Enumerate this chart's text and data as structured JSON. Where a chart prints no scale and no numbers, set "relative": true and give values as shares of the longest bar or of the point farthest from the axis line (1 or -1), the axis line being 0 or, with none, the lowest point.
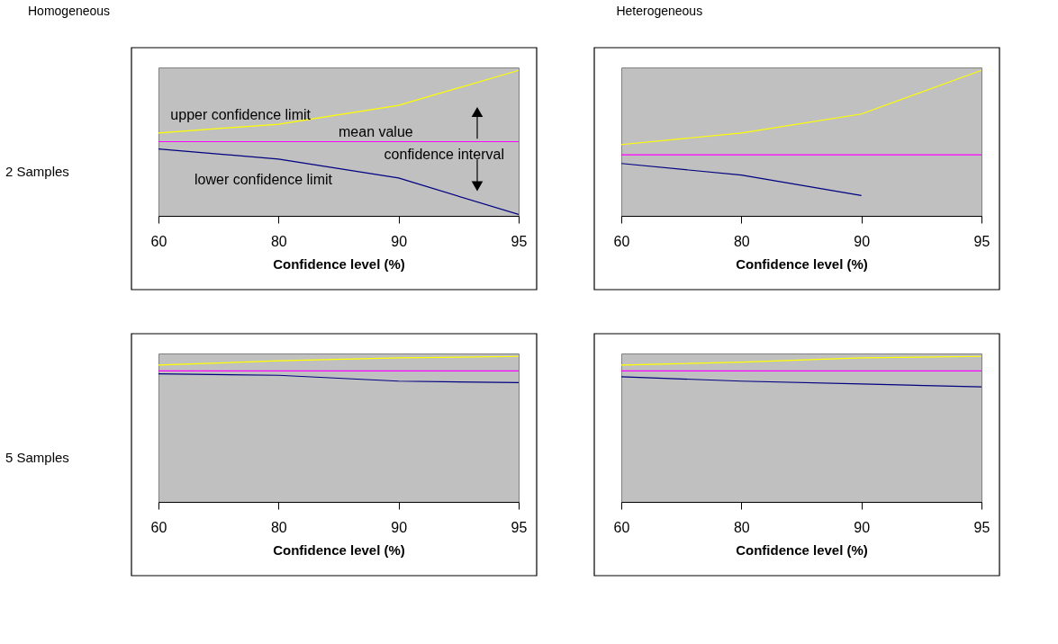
{
  "chart_data": [
    {
      "type": "line",
      "relative": true,
      "title": "Homogeneous",
      "ylabel": "2 Samples",
      "xlabel": "Confidence level (%)",
      "annotations": [
        "confidence interval"
      ],
      "categories": [
        "60",
        "80",
        "90",
        "95"
      ],
      "series": [
        {
          "name": "upper confidence limit",
          "color": "#ffff00",
          "values": [
            0.57,
            0.63,
            0.76,
            1
          ]
        },
        {
          "name": "mean value",
          "color": "#ff00ff",
          "values": [
            0.51,
            0.51,
            0.51,
            0.51
          ]
        },
        {
          "name": "lower confidence limit",
          "color": "#000080",
          "values": [
            0.46,
            0.39,
            0.26,
            0.01
          ]
        }
      ]
    },
    {
      "type": "line",
      "relative": true,
      "title": "Heterogeneous",
      "xlabel": "Confidence level (%)",
      "categories": [
        "60",
        "80",
        "90",
        "95"
      ],
      "series": [
        {
          "color": "#ffff00",
          "values": [
            0.49,
            0.57,
            0.7,
            1
          ]
        },
        {
          "color": "#ff00ff",
          "values": [
            0.42,
            0.42,
            0.42,
            0.42
          ]
        },
        {
          "color": "#000080",
          "values": [
            0.36,
            0.28,
            0.14,
            null
          ]
        }
      ]
    },
    {
      "type": "line",
      "relative": true,
      "ylabel": "5 Samples",
      "xlabel": "Confidence level (%)",
      "categories": [
        "60",
        "80",
        "90",
        "95"
      ],
      "series": [
        {
          "color": "#ffff00",
          "values": [
            0.94,
            0.97,
            0.99,
            1
          ]
        },
        {
          "color": "#ff00ff",
          "values": [
            0.9,
            0.9,
            0.9,
            0.9
          ]
        },
        {
          "color": "#000080",
          "values": [
            0.88,
            0.87,
            0.83,
            0.82
          ]
        }
      ]
    },
    {
      "type": "line",
      "relative": true,
      "xlabel": "Confidence level (%)",
      "categories": [
        "60",
        "80",
        "90",
        "95"
      ],
      "series": [
        {
          "color": "#ffff00",
          "values": [
            0.94,
            0.96,
            0.99,
            1
          ]
        },
        {
          "color": "#ff00ff",
          "values": [
            0.9,
            0.9,
            0.9,
            0.9
          ]
        },
        {
          "color": "#000080",
          "values": [
            0.86,
            0.83,
            0.81,
            0.79
          ]
        }
      ]
    }
  ]
}
